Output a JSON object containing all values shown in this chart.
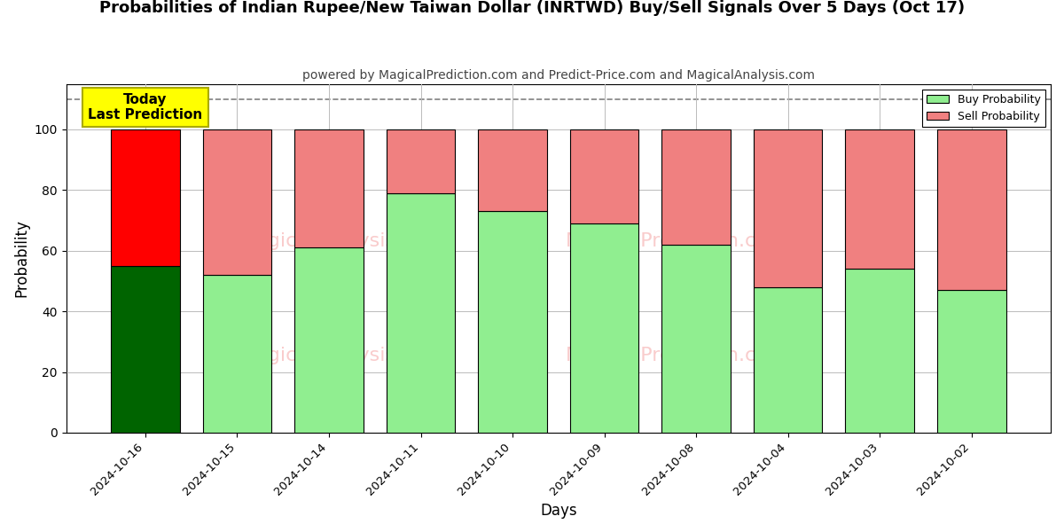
{
  "title": "Probabilities of Indian Rupee/New Taiwan Dollar (INRTWD) Buy/Sell Signals Over 5 Days (Oct 17)",
  "subtitle": "powered by MagicalPrediction.com and Predict-Price.com and MagicalAnalysis.com",
  "xlabel": "Days",
  "ylabel": "Probability",
  "categories": [
    "2024-10-16",
    "2024-10-15",
    "2024-10-14",
    "2024-10-11",
    "2024-10-10",
    "2024-10-09",
    "2024-10-08",
    "2024-10-04",
    "2024-10-03",
    "2024-10-02"
  ],
  "buy_values": [
    55,
    52,
    61,
    79,
    73,
    69,
    62,
    48,
    54,
    47
  ],
  "sell_values": [
    45,
    48,
    39,
    21,
    27,
    31,
    38,
    52,
    46,
    53
  ],
  "today_bar_buy_color": "#006400",
  "today_bar_sell_color": "#ff0000",
  "normal_bar_buy_color": "#90EE90",
  "normal_bar_sell_color": "#F08080",
  "bar_edge_color": "#000000",
  "today_annotation_text": "Today\nLast Prediction",
  "today_annotation_bg": "#ffff00",
  "legend_buy_color": "#90EE90",
  "legend_sell_color": "#F08080",
  "dashed_line_y": 110,
  "ylim": [
    0,
    115
  ],
  "yticks": [
    0,
    20,
    40,
    60,
    80,
    100
  ],
  "grid_color": "#bbbbbb",
  "figsize": [
    12,
    6
  ],
  "dpi": 100
}
